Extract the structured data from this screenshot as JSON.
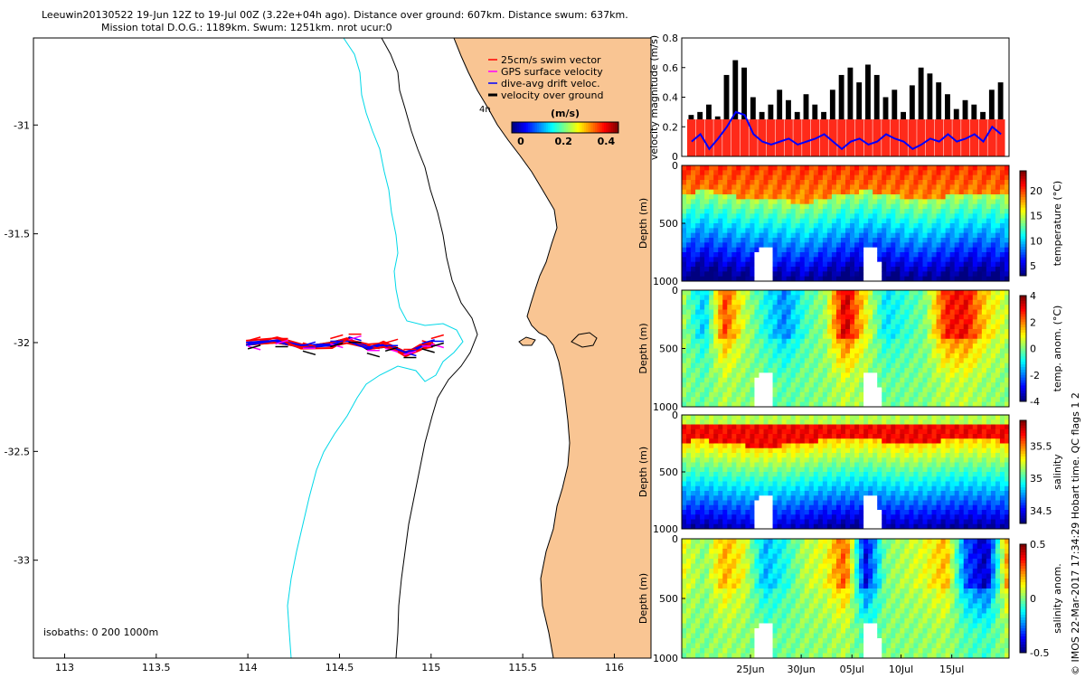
{
  "header": {
    "line1": "Leeuwin20130522 19-Jun 12Z to 19-Jul 00Z (3.22e+04h ago). Distance over ground: 607km. Distance swum: 637km.",
    "line2": "Mission total D.O.G.: 1189km. Swum: 1251km. nrot ucur:0"
  },
  "side_note": "© IMOS 22-Mar-2017 17:34:29 Hobart time. QC flags 1  2",
  "colors": {
    "land": "#f9c593",
    "coast": "#000000",
    "isobath": "#00d8e8",
    "swim_vector": "#ff0000",
    "gps_velocity": "#ff00ff",
    "drift": "#0000ff",
    "ground": "#000000"
  },
  "chart_data": [
    {
      "id": "map",
      "type": "scatter",
      "title": "",
      "xlim": [
        112.83,
        116.2
      ],
      "ylim": [
        -33.45,
        -30.6
      ],
      "x_ticks": [
        "113",
        "113.5",
        "114",
        "114.5",
        "115",
        "115.5",
        "116"
      ],
      "y_ticks": [
        "-31",
        "-31.5",
        "-32",
        "-32.5",
        "-33"
      ],
      "isobath_note": "isobaths: 0   200  1000m",
      "land_label": "4n",
      "legend": {
        "placement": "top-right",
        "entries": [
          "25cm/s swim vector",
          "GPS surface velocity",
          "dive-avg drift veloc.",
          "velocity over ground"
        ]
      },
      "colorbar": {
        "title": "(m/s)",
        "range": [
          0,
          0.5
        ],
        "ticks": [
          "0",
          "0.2",
          "0.4"
        ]
      },
      "track": {
        "x": [
          114.0,
          114.15,
          114.3,
          114.45,
          114.55,
          114.65,
          114.75,
          114.85,
          114.95,
          115.0
        ],
        "y": [
          -32.01,
          -32.0,
          -32.02,
          -32.0,
          -31.98,
          -32.03,
          -32.02,
          -32.05,
          -32.01,
          -32.0
        ]
      }
    },
    {
      "id": "velocity",
      "type": "bar",
      "ylabel": "velocity magnitude (m/s)",
      "ylim": [
        0,
        0.8
      ],
      "y_ticks": [
        "0",
        "0.2",
        "0.4",
        "0.6",
        "0.8"
      ],
      "series": [
        {
          "name": "velocity over ground",
          "values": [
            0.28,
            0.3,
            0.35,
            0.27,
            0.55,
            0.65,
            0.6,
            0.4,
            0.3,
            0.35,
            0.45,
            0.38,
            0.3,
            0.42,
            0.35,
            0.3,
            0.45,
            0.55,
            0.6,
            0.5,
            0.62,
            0.55,
            0.4,
            0.45,
            0.3,
            0.48,
            0.6,
            0.56,
            0.5,
            0.42,
            0.32,
            0.38,
            0.35,
            0.3,
            0.45,
            0.5
          ]
        },
        {
          "name": "swim vector",
          "values": [
            0.25,
            0.25,
            0.25,
            0.25,
            0.25,
            0.25,
            0.25,
            0.25,
            0.25,
            0.25,
            0.25,
            0.25,
            0.25,
            0.25,
            0.25,
            0.25,
            0.25,
            0.25,
            0.25,
            0.25,
            0.25,
            0.25,
            0.25,
            0.25,
            0.25,
            0.25,
            0.25,
            0.25,
            0.25,
            0.25,
            0.25,
            0.25,
            0.25,
            0.25,
            0.25,
            0.25
          ]
        },
        {
          "name": "dive-avg drift veloc.",
          "values": [
            0.1,
            0.15,
            0.05,
            0.12,
            0.2,
            0.3,
            0.28,
            0.15,
            0.1,
            0.08,
            0.1,
            0.12,
            0.08,
            0.1,
            0.12,
            0.15,
            0.1,
            0.05,
            0.1,
            0.12,
            0.08,
            0.1,
            0.15,
            0.12,
            0.1,
            0.05,
            0.08,
            0.12,
            0.1,
            0.15,
            0.1,
            0.12,
            0.15,
            0.1,
            0.2,
            0.15
          ]
        }
      ]
    },
    {
      "id": "temperature",
      "type": "heatmap",
      "ylabel": "Depth (m)",
      "cblabel": "temperature (°C)",
      "y_ticks": [
        "0",
        "500",
        "1000"
      ],
      "ylim": [
        1000,
        0
      ],
      "clim": [
        3,
        24
      ],
      "cb_ticks": [
        "5",
        "10",
        "15",
        "20"
      ],
      "colormap": "jet",
      "thermocline_depth_m": [
        250,
        200,
        240,
        270,
        280,
        300,
        320,
        280,
        230,
        210,
        230,
        280,
        300,
        260,
        230,
        240,
        260
      ]
    },
    {
      "id": "temp_anomaly",
      "type": "heatmap",
      "ylabel": "Depth (m)",
      "cblabel": "temp. anom. (°C)",
      "y_ticks": [
        "0",
        "500",
        "1000"
      ],
      "ylim": [
        1000,
        0
      ],
      "clim": [
        -4,
        4
      ],
      "cb_ticks": [
        "-4",
        "-2",
        "0",
        "2",
        "4"
      ],
      "colormap": "jet",
      "anomaly_profile": [
        0.2,
        -1.5,
        2.5,
        0.5,
        -0.8,
        -2.0,
        -0.5,
        0.2,
        3.5,
        1.0,
        -1.2,
        -0.6,
        0.0,
        2.8,
        3.0,
        1.2,
        0.5
      ]
    },
    {
      "id": "salinity",
      "type": "heatmap",
      "ylabel": "Depth (m)",
      "cblabel": "salinity",
      "y_ticks": [
        "0",
        "500",
        "1000"
      ],
      "ylim": [
        1000,
        0
      ],
      "clim": [
        34.3,
        35.9
      ],
      "cb_ticks": [
        "34.5",
        "35",
        "35.5"
      ],
      "colormap": "jet",
      "halocline_depth_m": [
        120,
        110,
        140,
        160,
        170,
        160,
        140,
        110,
        100,
        90,
        120,
        140,
        130,
        110,
        100,
        110,
        120
      ]
    },
    {
      "id": "salinity_anomaly",
      "type": "heatmap",
      "ylabel": "Depth (m)",
      "cblabel": "salinity anom.",
      "y_ticks": [
        "0",
        "500",
        "1000"
      ],
      "ylim": [
        1000,
        0
      ],
      "clim": [
        -0.5,
        0.5
      ],
      "cb_ticks": [
        "-0.5",
        "0",
        "0.5"
      ],
      "colormap": "jet",
      "anomaly_profile": [
        0.1,
        0.0,
        0.2,
        0.1,
        -0.2,
        -0.1,
        0.05,
        0.1,
        0.3,
        -0.4,
        0.0,
        0.05,
        0.1,
        0.2,
        -0.3,
        -0.45,
        0.2
      ],
      "x_ticks": [
        "25Jun",
        "30Jun",
        "05Jul",
        "10Jul",
        "15Jul"
      ]
    }
  ]
}
